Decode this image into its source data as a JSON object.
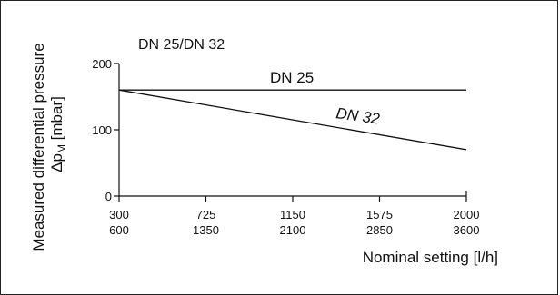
{
  "chart_data": {
    "type": "line",
    "title": "DN 25/DN 32",
    "ylabel_line1": "Measured differential pressure",
    "ylabel_line2_prefix": "Δp",
    "ylabel_line2_sub": "M",
    "ylabel_line2_suffix": " [mbar]",
    "xlabel": "Nominal setting [l/h]",
    "ylim": [
      0,
      200
    ],
    "yticks": [
      {
        "value": 0,
        "label": "0"
      },
      {
        "value": 100,
        "label": "100"
      },
      {
        "value": 200,
        "label": "200"
      }
    ],
    "xlim": [
      0,
      4
    ],
    "xticks": [
      {
        "pos": 0,
        "label_top": "300",
        "label_bottom": "600"
      },
      {
        "pos": 1,
        "label_top": "725",
        "label_bottom": "1350"
      },
      {
        "pos": 2,
        "label_top": "1150",
        "label_bottom": "2100"
      },
      {
        "pos": 3,
        "label_top": "1575",
        "label_bottom": "2850"
      },
      {
        "pos": 4,
        "label_top": "2000",
        "label_bottom": "3600"
      }
    ],
    "series": [
      {
        "name": "DN 25",
        "x": [
          0,
          4
        ],
        "y": [
          160,
          160
        ]
      },
      {
        "name": "DN 32",
        "x": [
          0,
          4
        ],
        "y": [
          160,
          70
        ]
      }
    ]
  }
}
